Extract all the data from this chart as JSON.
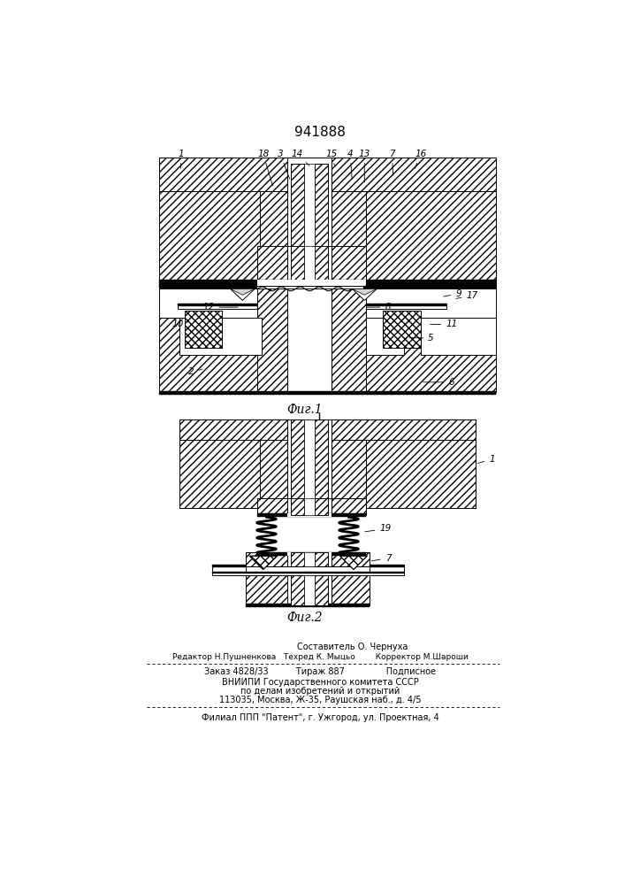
{
  "title": "941888",
  "fig1_label": "Фиг.1",
  "fig2_label": "Фиг.2",
  "footer_line1": "Составитель О. Чернуха",
  "footer_line2": "Редактор Н.Пушненкова   Техред К. Мыцьо        Корректор М.Шароши",
  "footer_line3": "Заказ 4828/33          Тираж 887               Подписное",
  "footer_line4": "ВНИИПИ Государственного комитета СССР",
  "footer_line5": "по делам изобретений и открытий",
  "footer_line6": "113035, Москва, Ж-35, Раушская наб., д. 4/5",
  "footer_line7": "Филиал ППП \"Патент\", г. Ужгород, ул. Проектная, 4",
  "bg_color": "#ffffff"
}
